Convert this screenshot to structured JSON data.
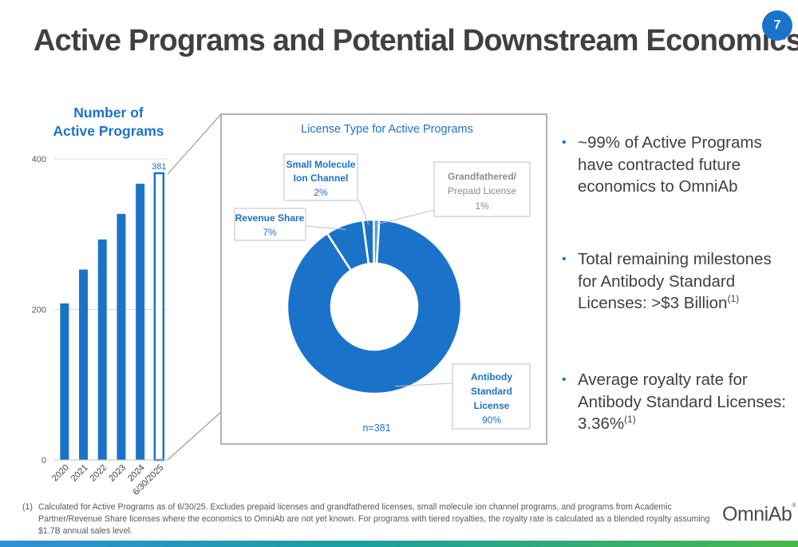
{
  "page": {
    "title": "Active Programs and Potential Downstream Economics",
    "page_number": "7"
  },
  "colors": {
    "accent": "#1a73c9",
    "title": "#404040",
    "callout_label": "#1a73c9",
    "callout_minor": "#8c8c8c"
  },
  "chart_data": [
    {
      "type": "bar",
      "title": "Number of Active Programs",
      "title_lines": [
        "Number of",
        "Active Programs"
      ],
      "categories": [
        "2020",
        "2021",
        "2022",
        "2023",
        "2024",
        "6/30/2025"
      ],
      "values": [
        208,
        253,
        293,
        327,
        367,
        381
      ],
      "highlighted_category": "6/30/2025",
      "data_labels": [
        {
          "category": "6/30/2025",
          "text": "381"
        }
      ],
      "yticks": [
        "0",
        "200",
        "400"
      ],
      "ylim": [
        0,
        400
      ],
      "grid": true,
      "colors": {
        "bar": "#1a73c9",
        "highlight_outline": "#1a73c9"
      }
    },
    {
      "type": "pie",
      "donut": true,
      "title": "License Type for Active Programs",
      "annotation": "n=381",
      "slices": [
        {
          "name": "Antibody Standard License",
          "label_lines": [
            "Antibody",
            "Standard",
            "License"
          ],
          "value": 90,
          "value_label": "90%",
          "color": "#1a73c9"
        },
        {
          "name": "Revenue Share",
          "label_lines": [
            "Revenue Share"
          ],
          "value": 7,
          "value_label": "7%",
          "color": "#1a73c9"
        },
        {
          "name": "Small Molecule Ion Channel",
          "label_lines": [
            "Small Molecule",
            "Ion Channel"
          ],
          "value": 2,
          "value_label": "2%",
          "color": "#1a73c9"
        },
        {
          "name": "Grandfathered/Prepaid License",
          "label_lines": [
            "Grandfathered/",
            "Prepaid License"
          ],
          "value": 1,
          "value_label": "1%",
          "color": "#1a73c9",
          "muted": true
        }
      ]
    }
  ],
  "bullets": [
    {
      "text": "~99% of Active Programs have contracted future economics to OmniAb",
      "sup": ""
    },
    {
      "text": "Total remaining milestones for Antibody Standard Licenses: >$3 Billion",
      "sup": "(1)"
    },
    {
      "text": "Average royalty rate for Antibody Standard Licenses: 3.36%",
      "sup": "(1)"
    }
  ],
  "footnote": {
    "marker": "(1)",
    "text": "Calculated for Active Programs as of 6/30/25. Excludes prepaid licenses and grandfathered licenses, small molecule ion channel programs, and programs from Academic Partner/Revenue Share licenses where the economics to OmniAb are not yet known. For programs with tiered royalties, the royalty rate is calculated as a blended royalty assuming $1.7B annual sales level."
  },
  "logo": {
    "text": "OmniAb",
    "reg": "®"
  },
  "icons": {
    "bullet": "bullet-dot-icon"
  }
}
